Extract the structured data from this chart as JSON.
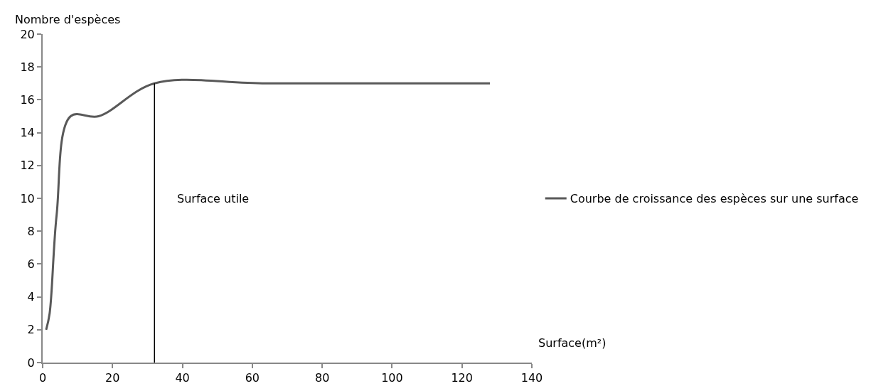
{
  "chart_data": {
    "type": "line",
    "xlabel": "Surface(m²)",
    "ylabel": "Nombre d'espèces",
    "x": [
      1,
      2,
      4,
      8,
      16,
      32,
      64,
      128
    ],
    "series": [
      {
        "name": "Courbe de croissance des espèces sur une surface",
        "color": "#595959",
        "values": [
          2,
          3,
          9,
          15,
          15,
          17,
          17,
          17
        ]
      }
    ],
    "xlim": [
      0,
      140
    ],
    "xticks": [
      0,
      20,
      40,
      60,
      80,
      100,
      120,
      140
    ],
    "ylim": [
      0,
      20
    ],
    "yticks": [
      0,
      2,
      4,
      6,
      8,
      10,
      12,
      14,
      16,
      18,
      20
    ],
    "ref_lines": [
      {
        "axis": "x",
        "value": 32,
        "label": "Surface utile",
        "color": "#000000"
      }
    ],
    "grid": false,
    "legend": "right",
    "marker": "none",
    "line_style": "solid"
  }
}
